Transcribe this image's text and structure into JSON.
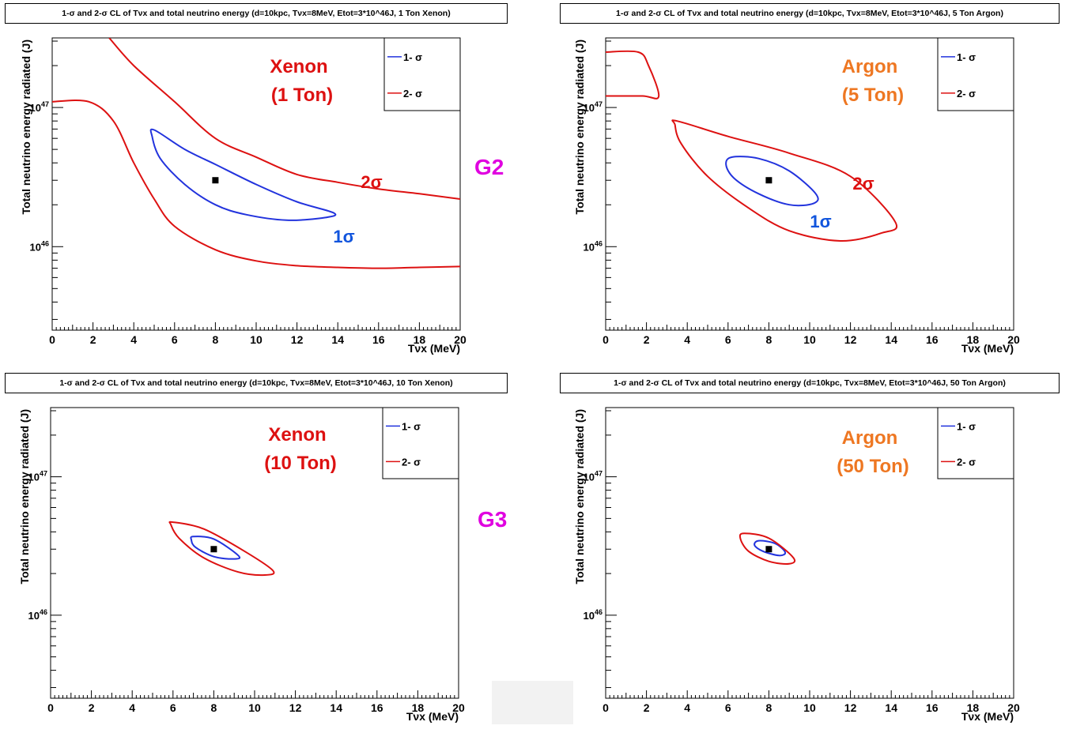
{
  "colors": {
    "one_sigma": "#2233dd",
    "two_sigma": "#dd1111",
    "xenon_label": "#dd1111",
    "argon_label": "#ee7722",
    "group_label": "#e000e0",
    "sigma_annot_1": "#1155dd",
    "sigma_annot_2": "#dd1111"
  },
  "group_labels": {
    "g2": "G2",
    "g3": "G3"
  },
  "panels": [
    {
      "title": "1-σ and 2-σ CL of Tνx and total neutrino energy (d=10kpc, Tνx=8MeV, Etot=3*10^46J, 1 Ton Xenon)",
      "target": "Xenon",
      "mass": "(1 Ton)",
      "label_color": "#dd1111",
      "annot_1": "1σ",
      "annot_2": "2σ",
      "legend": [
        "1- σ",
        "2- σ"
      ]
    },
    {
      "title": "1-σ and 2-σ CL of Tνx and total neutrino energy (d=10kpc, Tνx=8MeV, Etot=3*10^46J, 5 Ton Argon)",
      "target": "Argon",
      "mass": "(5 Ton)",
      "label_color": "#ee7722",
      "annot_1": "1σ",
      "annot_2": "2σ",
      "legend": [
        "1- σ",
        "2- σ"
      ]
    },
    {
      "title": "1-σ and 2-σ CL of Tνx and total neutrino energy (d=10kpc, Tνx=8MeV, Etot=3*10^46J, 10 Ton Xenon)",
      "target": "Xenon",
      "mass": "(10 Ton)",
      "label_color": "#dd1111",
      "annot_1": "",
      "annot_2": "",
      "legend": [
        "1- σ",
        "2- σ"
      ]
    },
    {
      "title": "1-σ and 2-σ CL of Tνx and total neutrino energy (d=10kpc, Tνx=8MeV, Etot=3*10^46J, 50 Ton Argon)",
      "target": "Argon",
      "mass": "(50 Ton)",
      "label_color": "#ee7722",
      "annot_1": "",
      "annot_2": "",
      "legend": [
        "1- σ",
        "2- σ"
      ]
    }
  ],
  "chart_data": [
    {
      "type": "line",
      "title": "1-σ and 2-σ CL of Tνx and total neutrino energy (d=10kpc, Tνx=8MeV, Etot=3*10^46J, 1 Ton Xenon)",
      "xlabel": "Tνx (MeV)",
      "ylabel": "Total neutrino energy radiated (J)",
      "xlim": [
        0,
        20
      ],
      "ylim_log10": [
        45.4,
        47.5
      ],
      "x_ticks": [
        "0",
        "2",
        "4",
        "6",
        "8",
        "10",
        "12",
        "14",
        "16",
        "18",
        "20"
      ],
      "y_ticks": [
        "10^46",
        "10^47"
      ],
      "best_fit": {
        "x": 8,
        "y": 3e+46
      },
      "series": [
        {
          "name": "1- σ",
          "closed": true,
          "points": [
            [
              5,
              6.9e+46
            ],
            [
              6.5,
              5e+46
            ],
            [
              8,
              3.9e+46
            ],
            [
              10,
              2.8e+46
            ],
            [
              12,
              2.1e+46
            ],
            [
              13.8,
              1.75e+46
            ],
            [
              13.4,
              1.62e+46
            ],
            [
              11.5,
              1.55e+46
            ],
            [
              9.5,
              1.7e+46
            ],
            [
              8,
              2e+46
            ],
            [
              6.5,
              2.8e+46
            ],
            [
              5.3,
              4.3e+46
            ],
            [
              4.9,
              6.2e+46
            ]
          ]
        },
        {
          "name": "2- σ",
          "closed": false,
          "points": [
            [
              2.8,
              3.16e+47
            ],
            [
              4,
              2e+47
            ],
            [
              6,
              1.1e+47
            ],
            [
              8,
              6e+46
            ],
            [
              10,
              4.4e+46
            ],
            [
              12,
              3.3e+46
            ],
            [
              14,
              2.9e+46
            ],
            [
              16,
              2.6e+46
            ],
            [
              18,
              2.4e+46
            ],
            [
              20,
              2.2e+46
            ]
          ]
        },
        {
          "name": "2- σ",
          "closed": false,
          "points": [
            [
              0,
              1.1e+47
            ],
            [
              1.8,
              1.1e+47
            ],
            [
              3,
              8e+46
            ],
            [
              4,
              4e+46
            ],
            [
              5,
              2.2e+46
            ],
            [
              6,
              1.4e+46
            ],
            [
              8,
              9.5e+45
            ],
            [
              10,
              7.9e+45
            ],
            [
              12,
              7.3e+45
            ],
            [
              14,
              7.1e+45
            ],
            [
              16,
              7e+45
            ],
            [
              18,
              7.1e+45
            ],
            [
              20,
              7.2e+45
            ]
          ]
        }
      ]
    },
    {
      "type": "line",
      "title": "1-σ and 2-σ CL of Tνx and total neutrino energy (d=10kpc, Tνx=8MeV, Etot=3*10^46J, 5 Ton Argon)",
      "xlabel": "Tνx (MeV)",
      "ylabel": "Total neutrino energy radiated (J)",
      "xlim": [
        0,
        20
      ],
      "ylim_log10": [
        45.4,
        47.5
      ],
      "x_ticks": [
        "0",
        "2",
        "4",
        "6",
        "8",
        "10",
        "12",
        "14",
        "16",
        "18",
        "20"
      ],
      "y_ticks": [
        "10^46",
        "10^47"
      ],
      "best_fit": {
        "x": 8,
        "y": 3e+46
      },
      "series": [
        {
          "name": "1- σ",
          "closed": true,
          "points": [
            [
              6.2,
              4.4e+46
            ],
            [
              7.5,
              4.3e+46
            ],
            [
              9,
              3.5e+46
            ],
            [
              10.3,
              2.4e+46
            ],
            [
              10.2,
              2.05e+46
            ],
            [
              9,
              2e+46
            ],
            [
              7.5,
              2.4e+46
            ],
            [
              6.3,
              3.1e+46
            ],
            [
              5.9,
              3.9e+46
            ]
          ]
        },
        {
          "name": "2- σ",
          "closed": true,
          "points": [
            [
              3.5,
              8e+46
            ],
            [
              6,
              6.2e+46
            ],
            [
              9,
              4.7e+46
            ],
            [
              12,
              3.2e+46
            ],
            [
              14.2,
              1.5e+46
            ],
            [
              13.5,
              1.25e+46
            ],
            [
              11.5,
              1.1e+46
            ],
            [
              9,
              1.3e+46
            ],
            [
              7,
              1.9e+46
            ],
            [
              5,
              3.2e+46
            ],
            [
              3.7,
              5.5e+46
            ],
            [
              3.4,
              7.5e+46
            ]
          ]
        },
        {
          "name": "2- σ",
          "closed": false,
          "points": [
            [
              0,
              2.5e+47
            ],
            [
              1.6,
              2.5e+47
            ],
            [
              2.1,
              2e+47
            ],
            [
              2.6,
              1.2e+47
            ],
            [
              1.8,
              1.21e+47
            ],
            [
              0,
              1.21e+47
            ]
          ]
        }
      ]
    },
    {
      "type": "line",
      "title": "1-σ and 2-σ CL of Tνx and total neutrino energy (d=10kpc, Tνx=8MeV, Etot=3*10^46J, 10 Ton Xenon)",
      "xlabel": "Tνx (MeV)",
      "ylabel": "Total neutrino energy radiated (J)",
      "xlim": [
        0,
        20
      ],
      "ylim_log10": [
        45.4,
        47.5
      ],
      "x_ticks": [
        "0",
        "2",
        "4",
        "6",
        "8",
        "10",
        "12",
        "14",
        "16",
        "18",
        "20"
      ],
      "y_ticks": [
        "10^46",
        "10^47"
      ],
      "best_fit": {
        "x": 8,
        "y": 3e+46
      },
      "series": [
        {
          "name": "1- σ",
          "closed": true,
          "points": [
            [
              7,
              3.7e+46
            ],
            [
              8,
              3.55e+46
            ],
            [
              9.2,
              2.7e+46
            ],
            [
              9,
              2.55e+46
            ],
            [
              8,
              2.65e+46
            ],
            [
              7.1,
              3.1e+46
            ],
            [
              6.9,
              3.5e+46
            ]
          ]
        },
        {
          "name": "2- σ",
          "closed": true,
          "points": [
            [
              6,
              4.7e+46
            ],
            [
              7.5,
              4.2e+46
            ],
            [
              9.5,
              2.9e+46
            ],
            [
              10.9,
              2.1e+46
            ],
            [
              10.5,
              1.95e+46
            ],
            [
              9.2,
              2.05e+46
            ],
            [
              7.5,
              2.6e+46
            ],
            [
              6.3,
              3.6e+46
            ],
            [
              5.9,
              4.5e+46
            ]
          ]
        }
      ]
    },
    {
      "type": "line",
      "title": "1-σ and 2-σ CL of Tνx and total neutrino energy (d=10kpc, Tνx=8MeV, Etot=3*10^46J, 50 Ton Argon)",
      "xlabel": "Tνx (MeV)",
      "ylabel": "Total neutrino energy radiated (J)",
      "xlim": [
        0,
        20
      ],
      "ylim_log10": [
        45.4,
        47.5
      ],
      "x_ticks": [
        "0",
        "2",
        "4",
        "6",
        "8",
        "10",
        "12",
        "14",
        "16",
        "18",
        "20"
      ],
      "y_ticks": [
        "10^46",
        "10^47"
      ],
      "best_fit": {
        "x": 8,
        "y": 3e+46
      },
      "series": [
        {
          "name": "1- σ",
          "closed": true,
          "points": [
            [
              7.5,
              3.45e+46
            ],
            [
              8.3,
              3.3e+46
            ],
            [
              8.8,
              2.85e+46
            ],
            [
              8.5,
              2.7e+46
            ],
            [
              7.7,
              2.9e+46
            ],
            [
              7.3,
              3.2e+46
            ]
          ]
        },
        {
          "name": "2- σ",
          "closed": true,
          "points": [
            [
              6.8,
              3.9e+46
            ],
            [
              8,
              3.6e+46
            ],
            [
              9.2,
              2.6e+46
            ],
            [
              9,
              2.35e+46
            ],
            [
              8,
              2.45e+46
            ],
            [
              7,
              2.9e+46
            ],
            [
              6.6,
              3.6e+46
            ]
          ]
        }
      ]
    }
  ]
}
